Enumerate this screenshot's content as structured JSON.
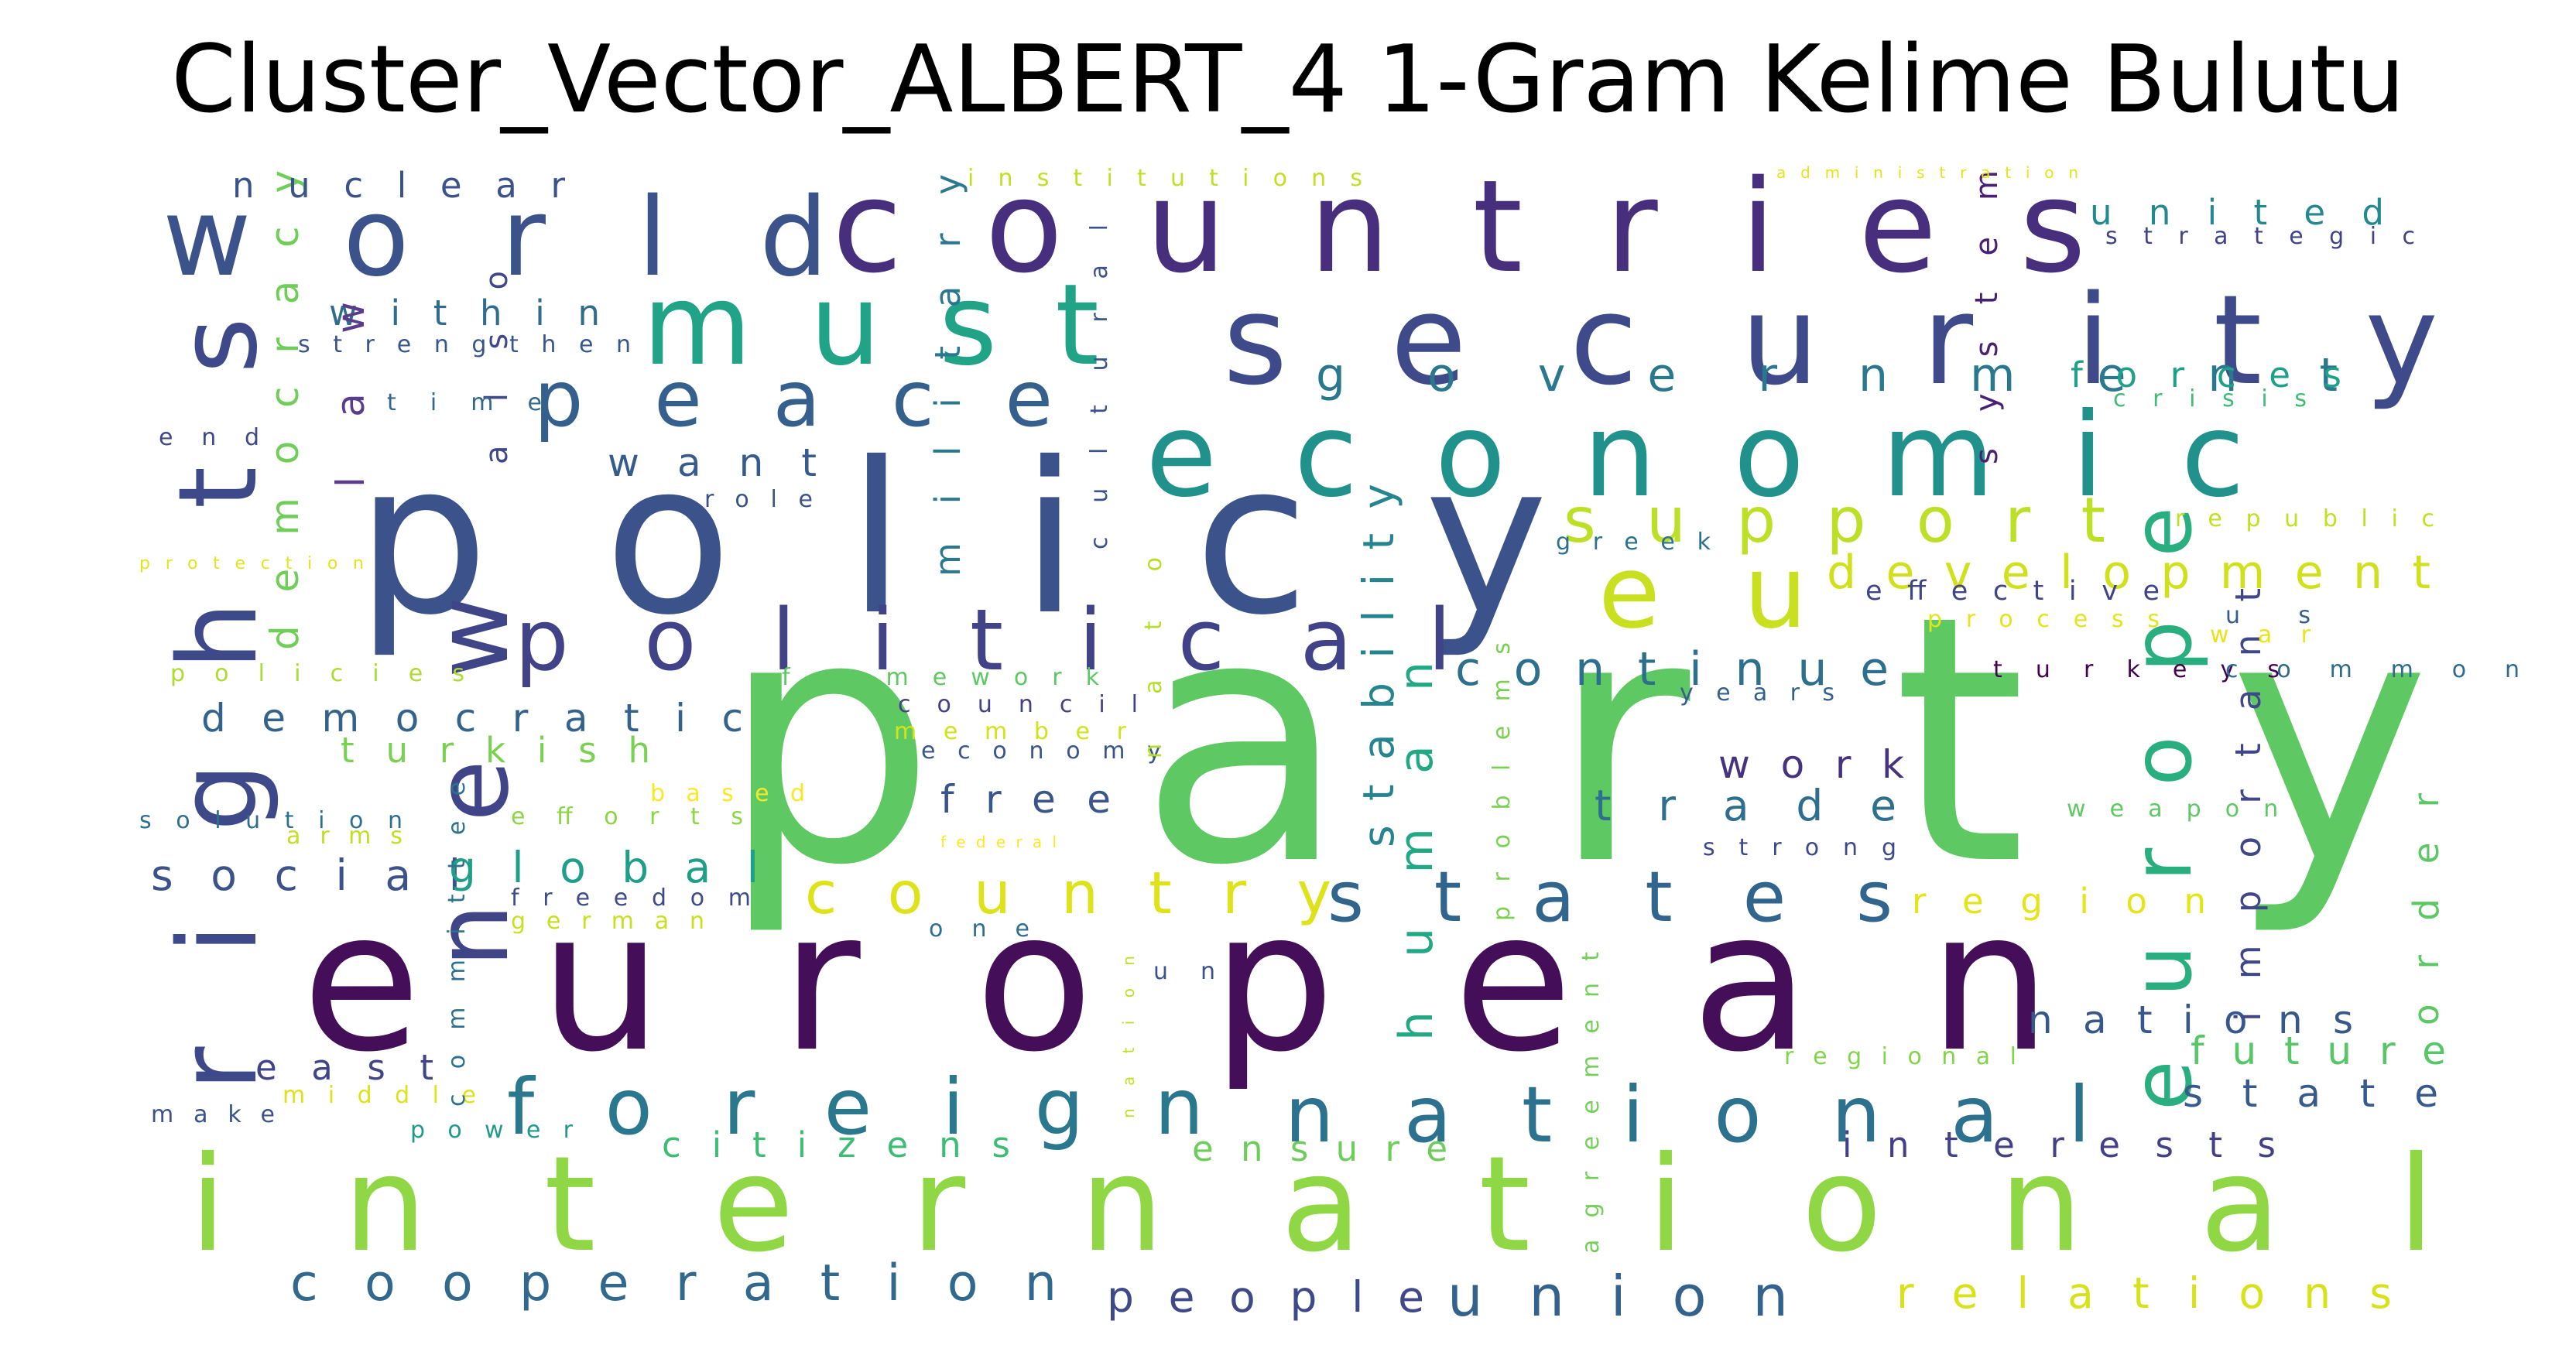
{
  "title": "Cluster_Vector_ALBERT_4 1-Gram Kelime Bulutu",
  "palette": "viridis",
  "words": [
    {
      "text": "party",
      "color": "#5ec962"
    },
    {
      "text": "european",
      "color": "#440f58"
    },
    {
      "text": "policy",
      "color": "#3b528b"
    },
    {
      "text": "international",
      "color": "#8fd744"
    },
    {
      "text": "countries",
      "color": "#472f7d"
    },
    {
      "text": "security",
      "color": "#3e4a89"
    },
    {
      "text": "economic",
      "color": "#21918c"
    },
    {
      "text": "must",
      "color": "#20a386"
    },
    {
      "text": "world",
      "color": "#3b528b"
    },
    {
      "text": "rights",
      "color": "#3e4989"
    },
    {
      "text": "new",
      "color": "#404588"
    },
    {
      "text": "political",
      "color": "#414287"
    },
    {
      "text": "peace",
      "color": "#355f8d"
    },
    {
      "text": "foreign",
      "color": "#2a788e"
    },
    {
      "text": "national",
      "color": "#2c728e"
    },
    {
      "text": "states",
      "color": "#32658e"
    },
    {
      "text": "europe",
      "color": "#29af7f"
    },
    {
      "text": "eu",
      "color": "#c8e020"
    },
    {
      "text": "support",
      "color": "#bddf26"
    },
    {
      "text": "development",
      "color": "#d0e11c"
    },
    {
      "text": "government",
      "color": "#2a788e"
    },
    {
      "text": "country",
      "color": "#dde318"
    },
    {
      "text": "cooperation",
      "color": "#31688e"
    },
    {
      "text": "union",
      "color": "#33638d"
    },
    {
      "text": "people",
      "color": "#3e4989"
    },
    {
      "text": "relations",
      "color": "#d8e219"
    },
    {
      "text": "citizens",
      "color": "#3dbc74"
    },
    {
      "text": "ensure",
      "color": "#6ccd5a"
    },
    {
      "text": "interests",
      "color": "#424086"
    },
    {
      "text": "state",
      "color": "#37598c"
    },
    {
      "text": "future",
      "color": "#56c667"
    },
    {
      "text": "nations",
      "color": "#38588c"
    },
    {
      "text": "important",
      "color": "#3f4788"
    },
    {
      "text": "order",
      "color": "#5cc863"
    },
    {
      "text": "region",
      "color": "#e5e419"
    },
    {
      "text": "trade",
      "color": "#2e6e8e"
    },
    {
      "text": "work",
      "color": "#46327e"
    },
    {
      "text": "continue",
      "color": "#2d708e"
    },
    {
      "text": "human",
      "color": "#22a884"
    },
    {
      "text": "stability",
      "color": "#25848e"
    },
    {
      "text": "democratic",
      "color": "#33638d"
    },
    {
      "text": "turkish",
      "color": "#7ad151"
    },
    {
      "text": "social",
      "color": "#3b528b"
    },
    {
      "text": "global",
      "color": "#1f9e89"
    },
    {
      "text": "free",
      "color": "#39568c"
    },
    {
      "text": "want",
      "color": "#365c8d"
    },
    {
      "text": "within",
      "color": "#2f6c8e"
    },
    {
      "text": "democracy",
      "color": "#6ece58"
    },
    {
      "text": "law",
      "color": "#5b3c8b"
    },
    {
      "text": "also",
      "color": "#3f4889"
    },
    {
      "text": "military",
      "color": "#2a788e"
    },
    {
      "text": "cultural",
      "color": "#3b528b"
    },
    {
      "text": "system",
      "color": "#482173"
    },
    {
      "text": "forces",
      "color": "#1fa088"
    },
    {
      "text": "united",
      "color": "#23898e"
    },
    {
      "text": "east",
      "color": "#414487"
    },
    {
      "text": "middle",
      "color": "#dde318"
    },
    {
      "text": "make",
      "color": "#3b528b"
    },
    {
      "text": "power",
      "color": "#1f9a8a"
    },
    {
      "text": "nuclear",
      "color": "#3b528b"
    },
    {
      "text": "strengthen",
      "color": "#39568c"
    },
    {
      "text": "time",
      "color": "#31688e"
    },
    {
      "text": "end",
      "color": "#3e4989"
    },
    {
      "text": "protection",
      "color": "#e5e419"
    },
    {
      "text": "policies",
      "color": "#addc30"
    },
    {
      "text": "solution",
      "color": "#2e6e8e"
    },
    {
      "text": "arms",
      "color": "#c2df23"
    },
    {
      "text": "efforts",
      "color": "#8bd646"
    },
    {
      "text": "based",
      "color": "#fde725"
    },
    {
      "text": "freedom",
      "color": "#3e4a89"
    },
    {
      "text": "german",
      "color": "#c8e020"
    },
    {
      "text": "committee",
      "color": "#2c728e"
    },
    {
      "text": "institutions",
      "color": "#c2df23"
    },
    {
      "text": "role",
      "color": "#3b528b"
    },
    {
      "text": "framework",
      "color": "#5ec962"
    },
    {
      "text": "council",
      "color": "#424086"
    },
    {
      "text": "member",
      "color": "#d2e21b"
    },
    {
      "text": "economy",
      "color": "#39558c"
    },
    {
      "text": "federal",
      "color": "#fde725"
    },
    {
      "text": "one",
      "color": "#2e6e8e"
    },
    {
      "text": "nato",
      "color": "#b5de2b"
    },
    {
      "text": "nation",
      "color": "#c2df23"
    },
    {
      "text": "un",
      "color": "#3b528b"
    },
    {
      "text": "problems",
      "color": "#7ad151"
    },
    {
      "text": "agreement",
      "color": "#73d056"
    },
    {
      "text": "strong",
      "color": "#3e4989"
    },
    {
      "text": "years",
      "color": "#35608d"
    },
    {
      "text": "weapons",
      "color": "#5ec962"
    },
    {
      "text": "regional",
      "color": "#84d44b"
    },
    {
      "text": "greek",
      "color": "#2c728e"
    },
    {
      "text": "effective",
      "color": "#414487"
    },
    {
      "text": "process",
      "color": "#e5e419"
    },
    {
      "text": "turkeys",
      "color": "#440154"
    },
    {
      "text": "war",
      "color": "#e7e419"
    },
    {
      "text": "us",
      "color": "#365c8d"
    },
    {
      "text": "common",
      "color": "#2f6b8e"
    },
    {
      "text": "republic",
      "color": "#c2df23"
    },
    {
      "text": "crisis",
      "color": "#40bd72"
    },
    {
      "text": "strategic",
      "color": "#414287"
    },
    {
      "text": "administration",
      "color": "#e5e419"
    }
  ]
}
